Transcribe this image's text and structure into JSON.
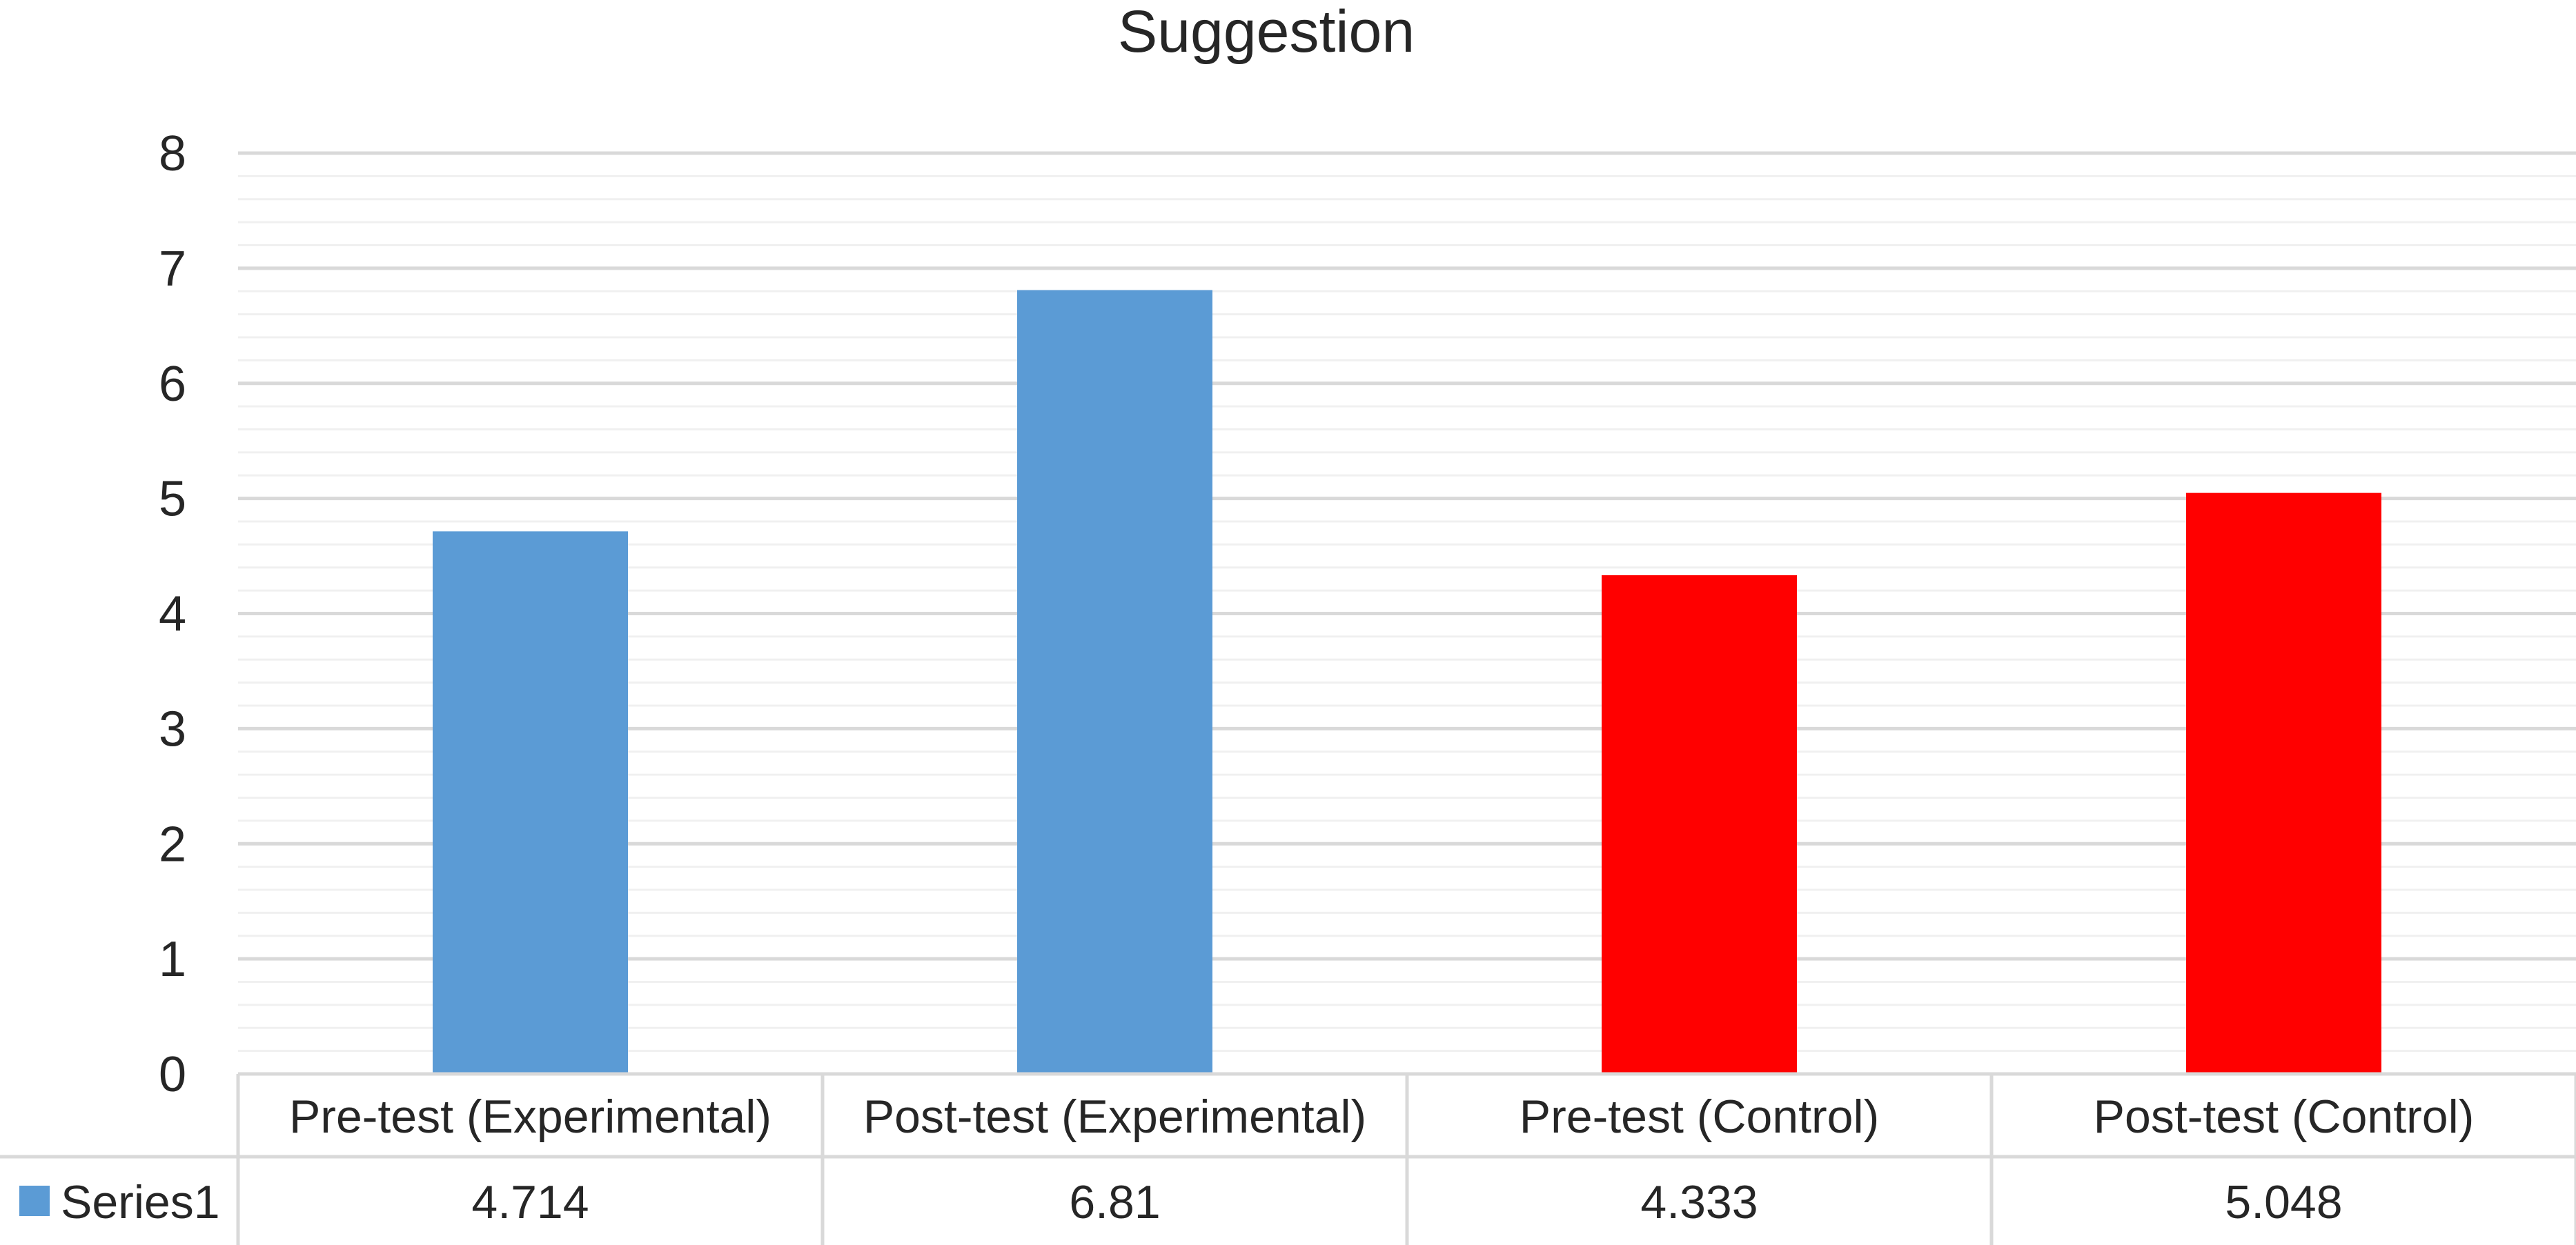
{
  "chart_data": {
    "type": "bar",
    "title": "Suggestion",
    "categories": [
      "Pre-test (Experimental)",
      "Post-test (Experimental)",
      "Pre-test (Control)",
      "Post-test (Control)"
    ],
    "series": [
      {
        "name": "Series1",
        "values": [
          4.714,
          6.81,
          4.333,
          5.048
        ],
        "value_labels": [
          "4.714",
          "6.81",
          "4.333",
          "5.048"
        ],
        "color": "#5B9BD5",
        "point_colors": [
          "#5B9BD5",
          "#5B9BD5",
          "#FF0000",
          "#FF0000"
        ]
      }
    ],
    "ylim": [
      0,
      8
    ],
    "y_ticks": [
      0,
      1,
      2,
      3,
      4,
      5,
      6,
      7,
      8
    ],
    "y_minor_step": 0.2,
    "grid": true,
    "legend": "data-table",
    "xlabel": "",
    "ylabel": ""
  },
  "colors": {
    "major_grid": "#D9D9D9",
    "minor_grid": "#F0F0F0",
    "table_border": "#D9D9D9",
    "text": "#262626"
  }
}
